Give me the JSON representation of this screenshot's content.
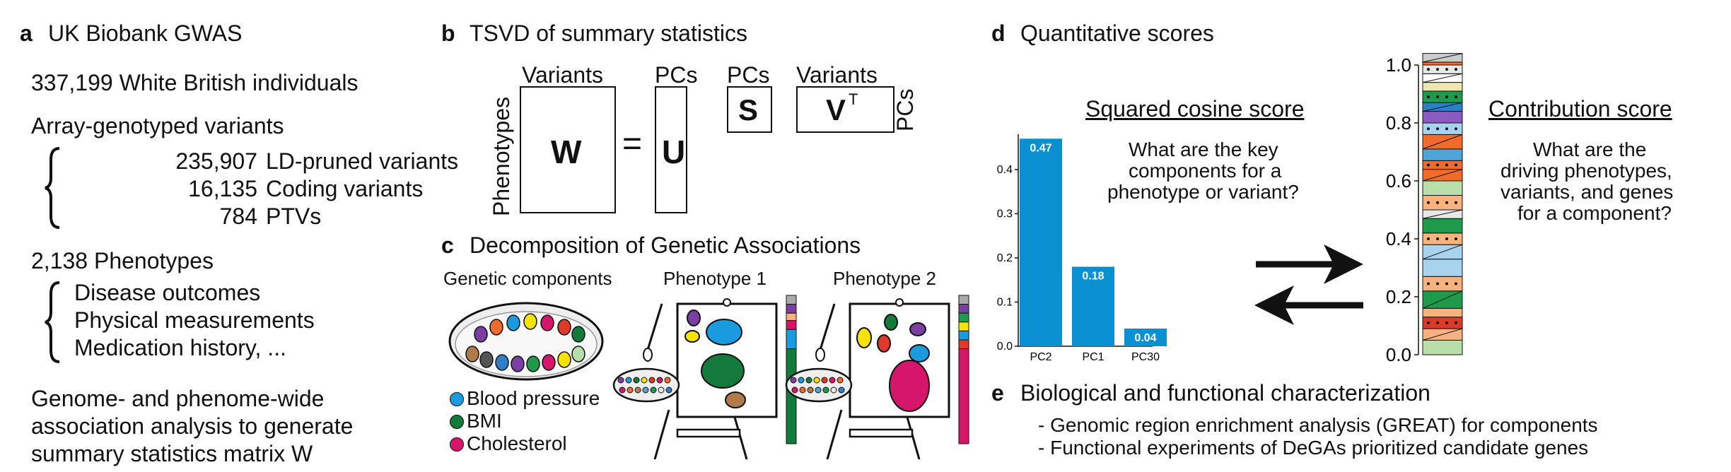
{
  "panel_a": {
    "label": "a",
    "title": "UK Biobank GWAS",
    "individuals": "337,199 White British individuals",
    "variants_heading": "Array-genotyped variants",
    "variants": [
      {
        "count": "235,907",
        "label": "LD-pruned variants"
      },
      {
        "count": "16,135",
        "label": "Coding variants"
      },
      {
        "count": "784",
        "label": "PTVs"
      }
    ],
    "phenotypes_heading": "2,138 Phenotypes",
    "phenotypes": [
      "Disease outcomes",
      "Physical measurements",
      "Medication history, ..."
    ],
    "summary": [
      "Genome- and phenome-wide",
      "association analysis to generate",
      "summary statistics matrix W"
    ]
  },
  "panel_b": {
    "label": "b",
    "title": "TSVD of summary statistics",
    "w_col": "Variants",
    "w_row": "Phenotypes",
    "W": "W",
    "equals": "=",
    "u_col": "PCs",
    "U": "U",
    "s_col": "PCs",
    "S": "S",
    "v_col": "Variants",
    "V": "V",
    "V_sup": "T",
    "v_row": "PCs"
  },
  "panel_c": {
    "label": "c",
    "title": "Decomposition of Genetic Associations",
    "components_label": "Genetic components",
    "phenotype1": "Phenotype 1",
    "phenotype2": "Phenotype 2",
    "legend": [
      {
        "label": "Blood pressure",
        "color": "#1a9be0"
      },
      {
        "label": "BMI",
        "color": "#137a3c"
      },
      {
        "label": "Cholesterol",
        "color": "#d6166a"
      }
    ]
  },
  "panel_d": {
    "label": "d",
    "title": "Quantitative scores",
    "cos_title": "Squared cosine score",
    "cos_question": [
      "What are the key",
      "components for a",
      "phenotype or variant?"
    ],
    "contrib_title": "Contribution score",
    "contrib_question": [
      "What are the",
      "driving phenotypes,",
      "variants, and genes",
      "for a component?"
    ]
  },
  "panel_e": {
    "label": "e",
    "title": "Biological and functional characterization",
    "items": [
      "- Genomic region enrichment analysis (GREAT) for components",
      "- Functional experiments of DeGAs prioritized candidate genes"
    ]
  },
  "chart_data": [
    {
      "type": "bar",
      "title": "Squared cosine score",
      "categories": [
        "PC2",
        "PC1",
        "PC30"
      ],
      "values": [
        0.47,
        0.18,
        0.04
      ],
      "value_labels": [
        "0.47",
        "0.18",
        "0.04"
      ],
      "ylim": [
        0,
        0.48
      ],
      "yticks": [
        0.0,
        0.1,
        0.2,
        0.3,
        0.4
      ],
      "ytick_labels": [
        "0.0",
        "0.1",
        "0.2",
        "0.3",
        "0.4"
      ],
      "bar_color": "#0a8fd0",
      "grid": false
    },
    {
      "type": "bar",
      "title": "Contribution score",
      "stacked": true,
      "ylim": [
        0,
        1.0
      ],
      "yticks": [
        0.0,
        0.2,
        0.4,
        0.6,
        0.8,
        1.0
      ],
      "ytick_labels": [
        "0.0",
        "0.2",
        "0.4",
        "0.6",
        "0.8",
        "1.0"
      ],
      "segments": [
        {
          "value": 0.05,
          "color": "#b8dfaa"
        },
        {
          "value": 0.04,
          "color": "#f7b27e"
        },
        {
          "value": 0.04,
          "color": "#dd3a2a"
        },
        {
          "value": 0.03,
          "color": "#f7b27e"
        },
        {
          "value": 0.06,
          "color": "#1e9a4a"
        },
        {
          "value": 0.05,
          "color": "#f7b27e"
        },
        {
          "value": 0.06,
          "color": "#a8d3ee"
        },
        {
          "value": 0.05,
          "color": "#a8d3ee"
        },
        {
          "value": 0.04,
          "color": "#f7b27e"
        },
        {
          "value": 0.05,
          "color": "#1e9a4a"
        },
        {
          "value": 0.03,
          "color": "#e8e8e8"
        },
        {
          "value": 0.05,
          "color": "#f7b27e"
        },
        {
          "value": 0.05,
          "color": "#b8dfaa"
        },
        {
          "value": 0.04,
          "color": "#f26b2a"
        },
        {
          "value": 0.03,
          "color": "#f26b2a"
        },
        {
          "value": 0.04,
          "color": "#4fa4d8"
        },
        {
          "value": 0.05,
          "color": "#f26b2a"
        },
        {
          "value": 0.04,
          "color": "#a8d3ee"
        },
        {
          "value": 0.04,
          "color": "#8a5cc0"
        },
        {
          "value": 0.03,
          "color": "#2f7fc8"
        },
        {
          "value": 0.04,
          "color": "#1e9a4a"
        },
        {
          "value": 0.03,
          "color": "#f0e6b0"
        },
        {
          "value": 0.03,
          "color": "#ffffff"
        },
        {
          "value": 0.03,
          "color": "#e8e8e8"
        },
        {
          "value": 0.01,
          "color": "#f26b2a"
        },
        {
          "value": 0.03,
          "color": "#cccccc"
        }
      ]
    }
  ]
}
